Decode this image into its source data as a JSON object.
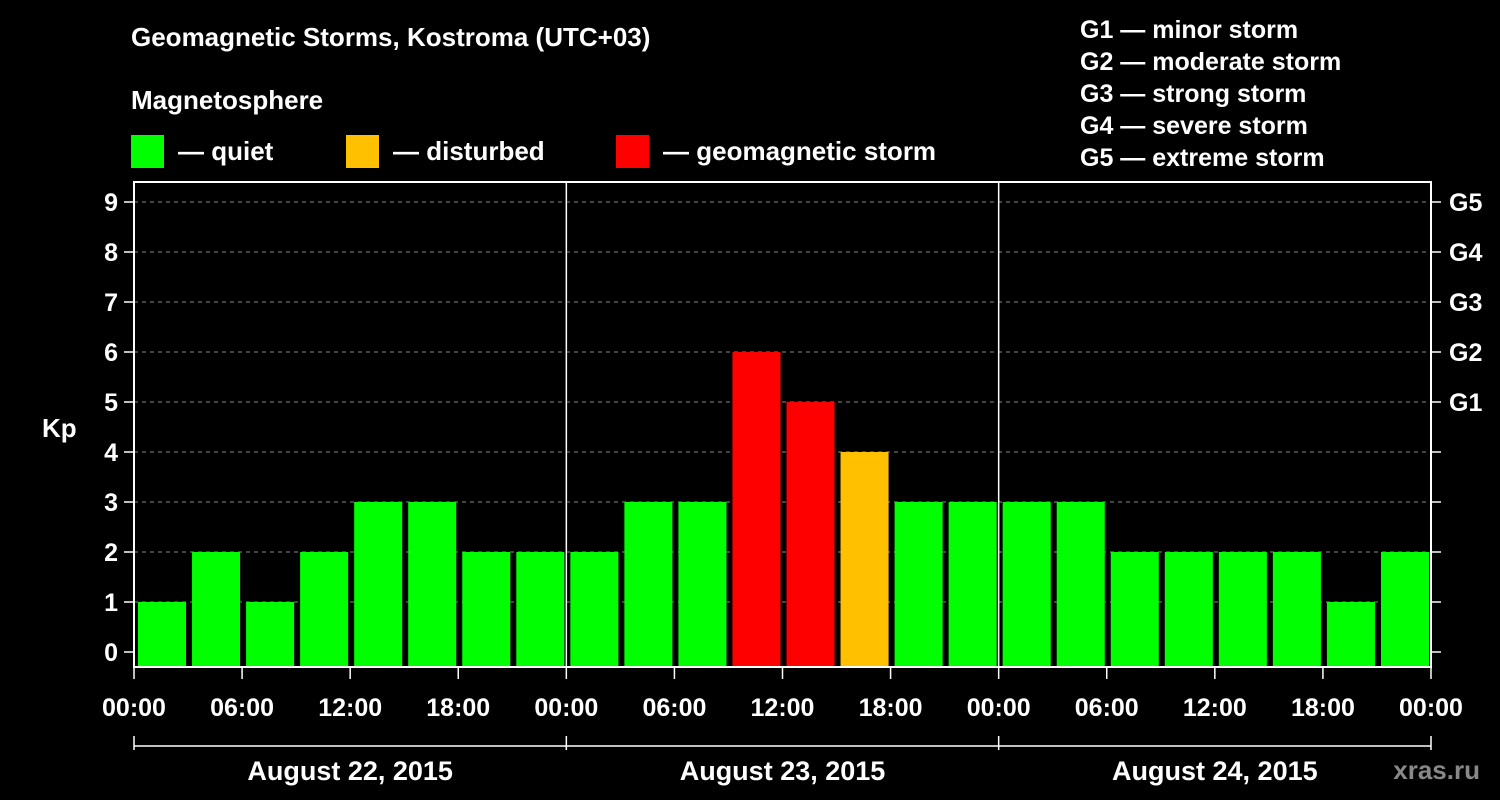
{
  "header": {
    "title": "Geomagnetic Storms, Kostroma (UTC+03)",
    "subtitle": "Magnetosphere"
  },
  "legend": [
    {
      "label": "— quiet",
      "color": "#00ff00"
    },
    {
      "label": "— disturbed",
      "color": "#ffc000"
    },
    {
      "label": "— geomagnetic storm",
      "color": "#ff0000"
    }
  ],
  "g_legend": [
    "G1 — minor storm",
    "G2 — moderate storm",
    "G3 — strong storm",
    "G4 — severe storm",
    "G5 — extreme storm"
  ],
  "watermark": "xras.ru",
  "chart_data": {
    "type": "bar",
    "ylabel": "Kp",
    "ylim": [
      0,
      9
    ],
    "y_ticks": [
      "0",
      "1",
      "2",
      "3",
      "4",
      "5",
      "6",
      "7",
      "8",
      "9"
    ],
    "right_axis_labels": [
      {
        "kp": 5,
        "label": "G1"
      },
      {
        "kp": 6,
        "label": "G2"
      },
      {
        "kp": 7,
        "label": "G3"
      },
      {
        "kp": 8,
        "label": "G4"
      },
      {
        "kp": 9,
        "label": "G5"
      }
    ],
    "grid": true,
    "x_tick_labels": [
      "00:00",
      "06:00",
      "12:00",
      "18:00",
      "00:00",
      "06:00",
      "12:00",
      "18:00",
      "00:00",
      "06:00",
      "12:00",
      "18:00",
      "00:00"
    ],
    "days": [
      "August 22, 2015",
      "August 23, 2015",
      "August 24, 2015"
    ],
    "interval_hours": 3,
    "values": [
      1,
      2,
      1,
      2,
      3,
      3,
      2,
      2,
      2,
      3,
      3,
      6,
      5,
      4,
      3,
      3,
      3,
      3,
      2,
      2,
      2,
      2,
      1,
      2
    ],
    "color_scale": {
      "quiet": {
        "max_kp": 3,
        "color": "#00ff00"
      },
      "disturbed": {
        "kp": 4,
        "color": "#ffc000"
      },
      "storm": {
        "min_kp": 5,
        "color": "#ff0000"
      }
    }
  }
}
